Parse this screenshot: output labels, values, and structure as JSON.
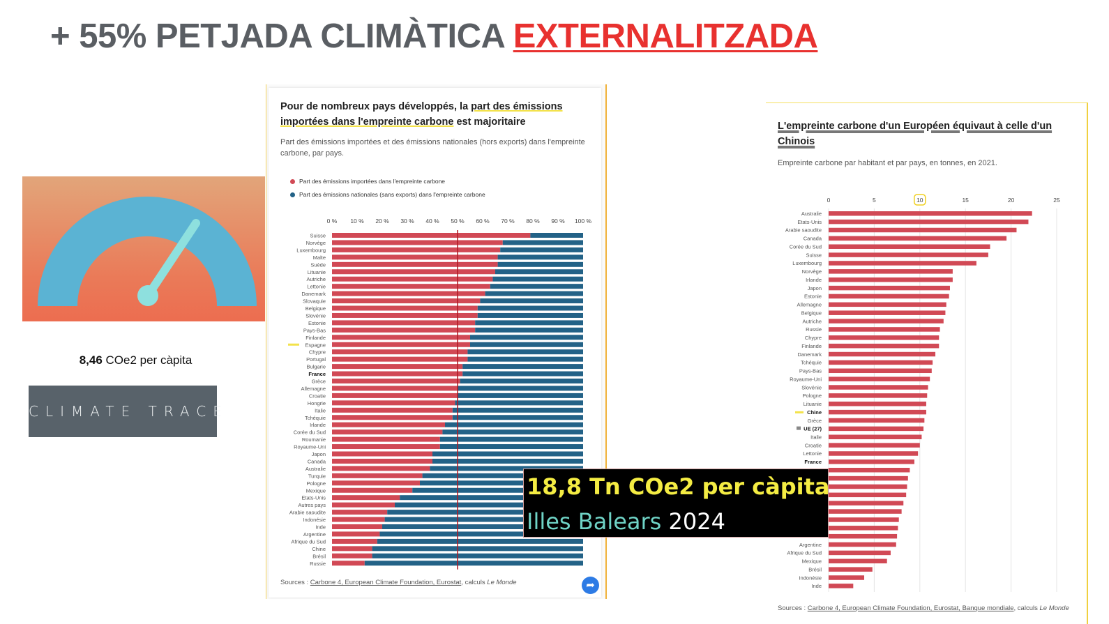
{
  "slide": {
    "title_prefix": "+ 55% PETJADA CLIMÀTICA",
    "title_highlight": "EXTERNALITZADA",
    "per_capita_value": "8,46",
    "per_capita_unit": "COe2 per càpita",
    "logo_text": "CLIMATE TRACE"
  },
  "callout": {
    "line1": "18,8 Tn COe2 per càpita",
    "line2_place": "Illes Balears",
    "line2_year": "2024"
  },
  "colors": {
    "imported": "#d14955",
    "national": "#236287",
    "title_accent": "#e8312f",
    "callout_yellow": "#f4ec43",
    "callout_teal": "#6fd3c6"
  },
  "icons": {
    "gauge": "gauge-icon",
    "share": "share-icon"
  },
  "left_panel": {
    "title_a": "Pour de nombreux pays développés, la ",
    "title_b": "part des émissions importées dans l'empreinte carbone",
    "title_c": " est majoritaire",
    "subtitle": "Part des émissions importées et des émissions nationales (hors exports) dans l'empreinte carbone, par pays.",
    "source_prefix": "Sources : ",
    "source_links": "Carbone 4, European Climate Foundation, Eurostat",
    "source_suffix": ", calculs ",
    "source_italic": "Le Monde"
  },
  "right_panel": {
    "title_a": "L'empreinte carbone d'un Européen équivaut à celle d'un",
    "title_b": "Chinois",
    "subtitle": "Empreinte carbone par habitant et par pays, en tonnes, en 2021.",
    "source_prefix": "Sources : ",
    "source_links": "Carbone 4, European Climate Foundation, Eurostat, Banque mondiale",
    "source_suffix": ", calculs ",
    "source_italic": "Le Monde"
  },
  "chart_data": [
    {
      "type": "bar",
      "orientation": "horizontal",
      "stacked": true,
      "title": "Pour de nombreux pays développés, la part des émissions importées dans l'empreinte carbone est majoritaire",
      "subtitle": "Part des émissions importées et des émissions nationales (hors exports) dans l'empreinte carbone, par pays.",
      "xlim": [
        0,
        100
      ],
      "xticks": [
        "0 %",
        "10 %",
        "20 %",
        "30 %",
        "40 %",
        "50 %",
        "60 %",
        "70 %",
        "80 %",
        "90 %",
        "100 %"
      ],
      "reference_line": 50,
      "legend_position": "top-left",
      "categories": [
        "Suisse",
        "Norvège",
        "Luxembourg",
        "Malte",
        "Suède",
        "Lituanie",
        "Autriche",
        "Lettonie",
        "Danemark",
        "Slovaquie",
        "Belgique",
        "Slovénie",
        "Estonie",
        "Pays-Bas",
        "Finlande",
        "Espagne",
        "Chypre",
        "Portugal",
        "Bulgarie",
        "France",
        "Grèce",
        "Allemagne",
        "Croatie",
        "Hongrie",
        "Italie",
        "Tchéquie",
        "Irlande",
        "Corée du Sud",
        "Roumanie",
        "Royaume-Uni",
        "Japon",
        "Canada",
        "Australie",
        "Turquie",
        "Pologne",
        "Mexique",
        "Etats-Unis",
        "Autres pays",
        "Arabie saoudite",
        "Indonésie",
        "Inde",
        "Argentine",
        "Afrique du Sud",
        "Chine",
        "Brésil",
        "Russie"
      ],
      "bold_categories": [
        "France"
      ],
      "highlighted_categories": [
        "Espagne"
      ],
      "series": [
        {
          "name": "Part des émissions importées dans l'empreinte carbone",
          "color": "#d14955",
          "values": [
            79,
            68,
            67,
            66,
            66,
            65,
            64,
            63,
            61,
            59,
            58,
            58,
            57,
            57,
            55,
            55,
            54,
            54,
            52,
            52,
            51,
            50,
            50,
            49,
            48,
            48,
            45,
            44,
            43,
            43,
            40,
            40,
            39,
            36,
            35,
            32,
            27,
            25,
            22,
            21,
            20,
            19,
            18,
            16,
            16,
            13
          ]
        },
        {
          "name": "Part des émissions nationales (sans exports) dans l'empreinte carbone",
          "color": "#236287",
          "values": [
            21,
            32,
            33,
            34,
            34,
            35,
            36,
            37,
            39,
            41,
            42,
            42,
            43,
            43,
            45,
            45,
            46,
            46,
            48,
            48,
            49,
            50,
            50,
            51,
            52,
            52,
            55,
            56,
            57,
            57,
            60,
            60,
            61,
            64,
            65,
            68,
            73,
            75,
            78,
            79,
            80,
            81,
            82,
            84,
            84,
            87
          ]
        }
      ]
    },
    {
      "type": "bar",
      "orientation": "horizontal",
      "title": "L'empreinte carbone d'un Européen équivaut à celle d'un Chinois",
      "subtitle": "Empreinte carbone par habitant et par pays, en tonnes, en 2021.",
      "xlim": [
        0,
        25
      ],
      "xticks": [
        0,
        5,
        10,
        15,
        20,
        25
      ],
      "highlighted_tick": 10,
      "color": "#d14955",
      "categories": [
        "Australie",
        "Etats-Unis",
        "Arabie saoudite",
        "Canada",
        "Corée du Sud",
        "Suisse",
        "Luxembourg",
        "Norvège",
        "Irlande",
        "Japon",
        "Estonie",
        "Allemagne",
        "Belgique",
        "Autriche",
        "Russie",
        "Chypre",
        "Finlande",
        "Danemark",
        "Tchéquie",
        "Pays-Bas",
        "Royaume-Uni",
        "Slovénie",
        "Pologne",
        "Lituanie",
        "Chine",
        "Grèce",
        "UE (27)",
        "Italie",
        "Croatie",
        "Lettonie",
        "France",
        "",
        "",
        "",
        "",
        "",
        "",
        "",
        "",
        "",
        "Argentine",
        "Afrique du Sud",
        "Mexique",
        "Brésil",
        "Indonésie",
        "Inde"
      ],
      "bold_categories": [
        "Chine",
        "UE (27)",
        "France"
      ],
      "highlighted_categories": [
        "Chine",
        "UE (27)"
      ],
      "values": [
        22.3,
        21.9,
        20.6,
        19.5,
        17.7,
        17.5,
        16.2,
        13.6,
        13.6,
        13.3,
        13.2,
        12.9,
        12.8,
        12.6,
        12.2,
        12.1,
        12.1,
        11.7,
        11.4,
        11.3,
        11.1,
        10.9,
        10.8,
        10.7,
        10.7,
        10.5,
        10.4,
        10.2,
        10.0,
        9.8,
        9.4,
        8.9,
        8.7,
        8.6,
        8.5,
        8.2,
        8.0,
        7.7,
        7.6,
        7.5,
        7.4,
        6.8,
        6.4,
        4.8,
        3.9,
        2.7
      ]
    }
  ]
}
